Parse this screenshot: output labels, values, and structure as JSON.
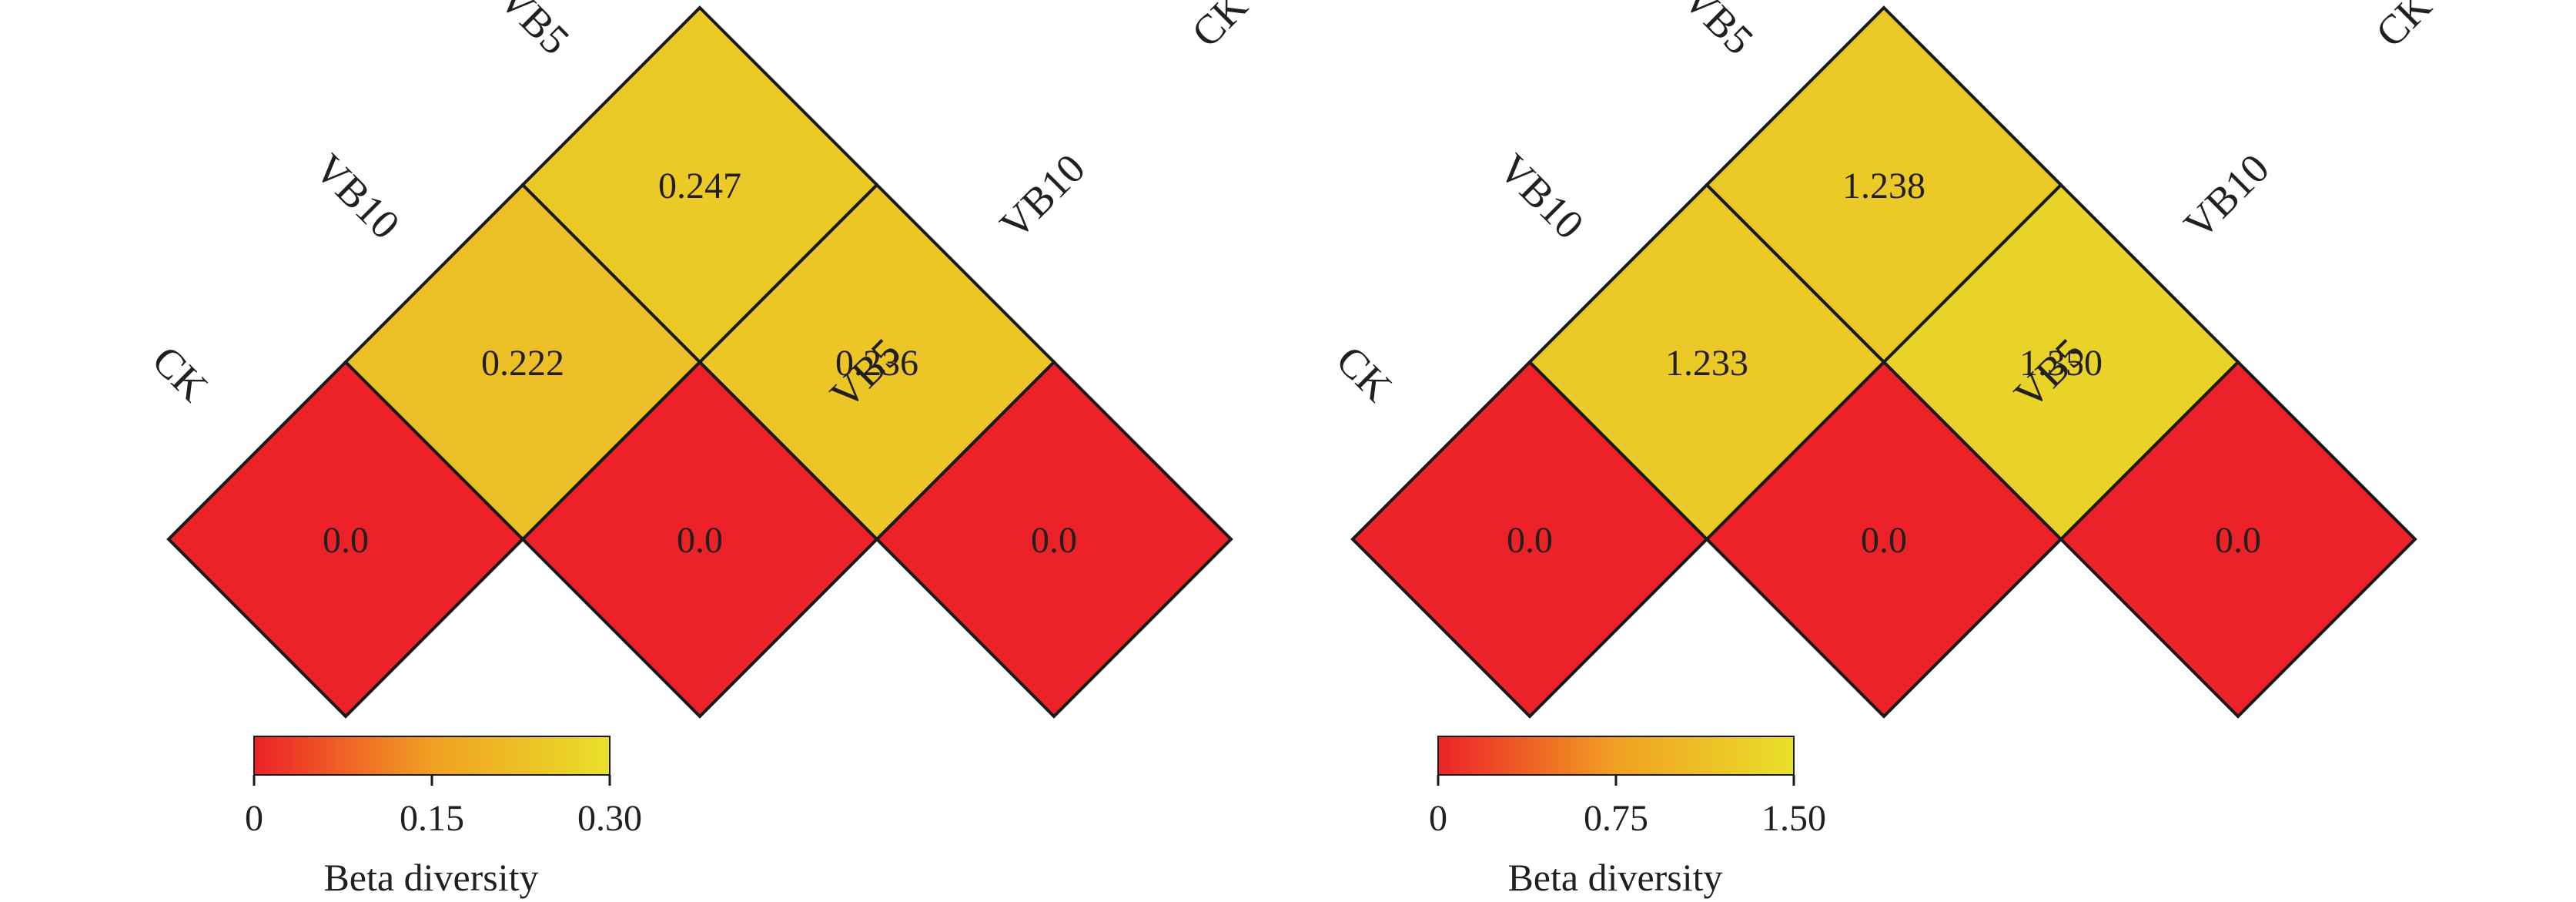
{
  "chart_data": [
    {
      "type": "heatmap",
      "groups": [
        "CK",
        "VB10",
        "VB5"
      ],
      "cells": [
        {
          "row": "CK",
          "col": "CK",
          "value": 0.0,
          "label": "0.0"
        },
        {
          "row": "VB10",
          "col": "VB10",
          "value": 0.0,
          "label": "0.0"
        },
        {
          "row": "VB5",
          "col": "VB5",
          "value": 0.0,
          "label": "0.0"
        },
        {
          "row": "CK",
          "col": "VB10",
          "value": 0.222,
          "label": "0.222"
        },
        {
          "row": "VB10",
          "col": "VB5",
          "value": 0.236,
          "label": "0.236"
        },
        {
          "row": "CK",
          "col": "VB5",
          "value": 0.247,
          "label": "0.247"
        }
      ],
      "left_labels": [
        "CK",
        "VB10",
        "VB5"
      ],
      "right_labels": [
        "CK",
        "VB10",
        "VB5"
      ],
      "colorbar": {
        "range": [
          0,
          0.3
        ],
        "ticks": [
          0,
          0.15,
          0.3
        ],
        "tick_labels": [
          "0",
          "0.15",
          "0.30"
        ],
        "title": "Beta diversity",
        "colors": [
          "#ed2229",
          "#f0a021",
          "#e9e02b"
        ]
      }
    },
    {
      "type": "heatmap",
      "groups": [
        "CK",
        "VB10",
        "VB5"
      ],
      "cells": [
        {
          "row": "CK",
          "col": "CK",
          "value": 0.0,
          "label": "0.0"
        },
        {
          "row": "VB10",
          "col": "VB10",
          "value": 0.0,
          "label": "0.0"
        },
        {
          "row": "VB5",
          "col": "VB5",
          "value": 0.0,
          "label": "0.0"
        },
        {
          "row": "CK",
          "col": "VB10",
          "value": 1.233,
          "label": "1.233"
        },
        {
          "row": "VB10",
          "col": "VB5",
          "value": 1.35,
          "label": "1.350"
        },
        {
          "row": "CK",
          "col": "VB5",
          "value": 1.238,
          "label": "1.238"
        }
      ],
      "left_labels": [
        "CK",
        "VB10",
        "VB5"
      ],
      "right_labels": [
        "CK",
        "VB10",
        "VB5"
      ],
      "colorbar": {
        "range": [
          0,
          1.5
        ],
        "ticks": [
          0,
          0.75,
          1.5
        ],
        "tick_labels": [
          "0",
          "0.75",
          "1.50"
        ],
        "title": "Beta diversity",
        "colors": [
          "#ed2229",
          "#f0a021",
          "#e9e02b"
        ]
      }
    }
  ]
}
